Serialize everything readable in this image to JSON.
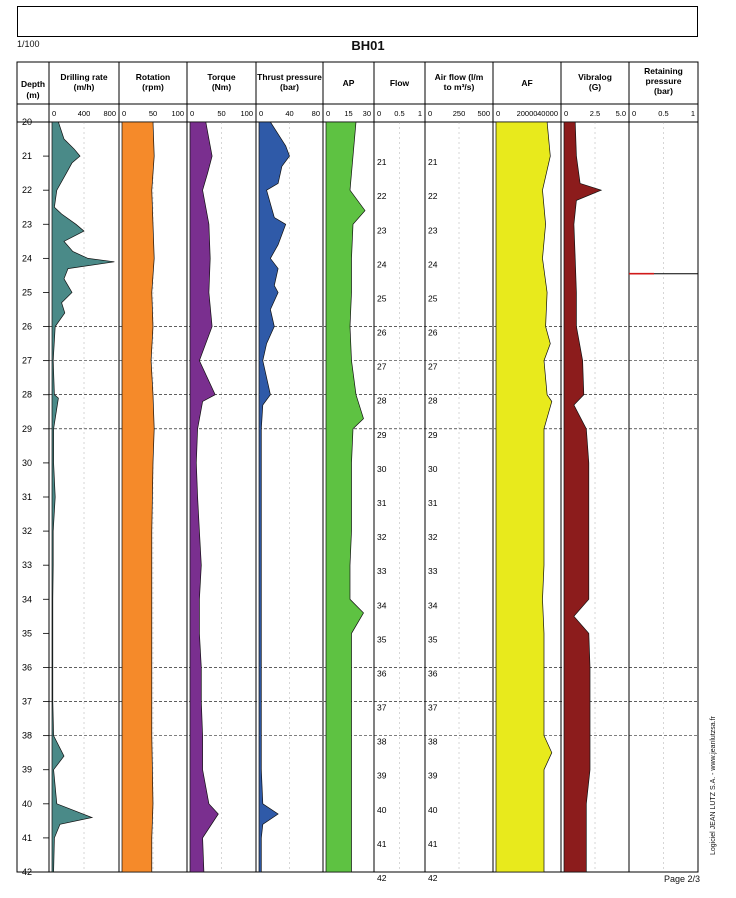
{
  "header": {
    "scale": "1/100",
    "title": "BH01",
    "page": "Page 2/3",
    "credit": "Logiciel JEAN LUTZ S.A. - www.jeanlutzsa.fr"
  },
  "chart_data": {
    "type": "well-log",
    "title": "BH01",
    "depth_axis": {
      "label_line1": "Depth",
      "label_line2": "(m)",
      "range": [
        20,
        42
      ],
      "ticks": [
        "20",
        "21",
        "22",
        "23",
        "24",
        "25",
        "26",
        "27",
        "28",
        "29",
        "30",
        "31",
        "32",
        "33",
        "34",
        "35",
        "36",
        "37",
        "38",
        "39",
        "40",
        "41",
        "42"
      ],
      "dashed_lines": [
        26,
        27,
        28,
        29,
        36,
        37,
        38
      ]
    },
    "tracks": [
      {
        "name": "Drilling rate",
        "unit": "(m/h)",
        "ticks": [
          "0",
          "400",
          "800"
        ],
        "range": [
          0,
          800
        ],
        "color": "#4a8a88",
        "series": [
          [
            20,
            80
          ],
          [
            20.5,
            150
          ],
          [
            20.8,
            280
          ],
          [
            21,
            350
          ],
          [
            21.2,
            250
          ],
          [
            21.5,
            180
          ],
          [
            22,
            60
          ],
          [
            22.5,
            30
          ],
          [
            22.7,
            120
          ],
          [
            23,
            300
          ],
          [
            23.2,
            400
          ],
          [
            23.5,
            150
          ],
          [
            23.8,
            260
          ],
          [
            24,
            450
          ],
          [
            24.1,
            780
          ],
          [
            24.3,
            200
          ],
          [
            24.6,
            150
          ],
          [
            25,
            250
          ],
          [
            25.3,
            120
          ],
          [
            25.6,
            160
          ],
          [
            26,
            40
          ],
          [
            27,
            15
          ],
          [
            28,
            30
          ],
          [
            28.1,
            80
          ],
          [
            29,
            20
          ],
          [
            30,
            20
          ],
          [
            31,
            40
          ],
          [
            32,
            15
          ],
          [
            33,
            15
          ],
          [
            34,
            10
          ],
          [
            35,
            10
          ],
          [
            36,
            10
          ],
          [
            37,
            10
          ],
          [
            38,
            20
          ],
          [
            38.6,
            150
          ],
          [
            39,
            20
          ],
          [
            40,
            60
          ],
          [
            40.4,
            500
          ],
          [
            40.6,
            100
          ],
          [
            41,
            30
          ],
          [
            42,
            20
          ]
        ]
      },
      {
        "name": "Rotation",
        "unit": "(rpm)",
        "ticks": [
          "0",
          "50",
          "100"
        ],
        "range": [
          0,
          100
        ],
        "color": "#f58a2a",
        "series": [
          [
            20,
            50
          ],
          [
            21,
            52
          ],
          [
            22,
            48
          ],
          [
            23,
            50
          ],
          [
            24,
            52
          ],
          [
            25,
            48
          ],
          [
            26,
            50
          ],
          [
            27,
            47
          ],
          [
            28,
            50
          ],
          [
            29,
            52
          ],
          [
            30,
            50
          ],
          [
            31,
            49
          ],
          [
            32,
            48
          ],
          [
            33,
            48
          ],
          [
            34,
            48
          ],
          [
            35,
            48
          ],
          [
            36,
            48
          ],
          [
            37,
            48
          ],
          [
            38,
            48
          ],
          [
            39,
            49
          ],
          [
            40,
            50
          ],
          [
            41,
            48
          ],
          [
            42,
            48
          ]
        ]
      },
      {
        "name": "Torque",
        "unit": "(Nm)",
        "ticks": [
          "0",
          "50",
          "100"
        ],
        "range": [
          0,
          100
        ],
        "color": "#7a2f8f",
        "series": [
          [
            20,
            25
          ],
          [
            20.5,
            30
          ],
          [
            21,
            35
          ],
          [
            21.5,
            28
          ],
          [
            22,
            20
          ],
          [
            23,
            30
          ],
          [
            24,
            32
          ],
          [
            25,
            30
          ],
          [
            26,
            35
          ],
          [
            27,
            15
          ],
          [
            28,
            40
          ],
          [
            28.2,
            20
          ],
          [
            29,
            12
          ],
          [
            30,
            10
          ],
          [
            31,
            12
          ],
          [
            32,
            15
          ],
          [
            33,
            18
          ],
          [
            34,
            15
          ],
          [
            35,
            15
          ],
          [
            36,
            18
          ],
          [
            37,
            18
          ],
          [
            38,
            20
          ],
          [
            39,
            20
          ],
          [
            40,
            30
          ],
          [
            40.3,
            45
          ],
          [
            41,
            20
          ],
          [
            42,
            22
          ]
        ]
      },
      {
        "name": "Thrust pressure",
        "unit": "(bar)",
        "ticks": [
          "0",
          "40",
          "80"
        ],
        "range": [
          0,
          80
        ],
        "color": "#2f5aa8",
        "series": [
          [
            20,
            15
          ],
          [
            20.7,
            35
          ],
          [
            21,
            40
          ],
          [
            21.3,
            30
          ],
          [
            21.8,
            25
          ],
          [
            22,
            10
          ],
          [
            22.8,
            20
          ],
          [
            23,
            35
          ],
          [
            23.3,
            30
          ],
          [
            23.6,
            25
          ],
          [
            24,
            15
          ],
          [
            24.3,
            25
          ],
          [
            24.8,
            20
          ],
          [
            25,
            25
          ],
          [
            25.5,
            15
          ],
          [
            26,
            20
          ],
          [
            26.5,
            10
          ],
          [
            27,
            5
          ],
          [
            28,
            15
          ],
          [
            28.3,
            5
          ],
          [
            29,
            3
          ],
          [
            30,
            3
          ],
          [
            31,
            3
          ],
          [
            32,
            3
          ],
          [
            33,
            3
          ],
          [
            34,
            3
          ],
          [
            35,
            3
          ],
          [
            36,
            3
          ],
          [
            37,
            3
          ],
          [
            38,
            3
          ],
          [
            39,
            3
          ],
          [
            40,
            5
          ],
          [
            40.3,
            25
          ],
          [
            40.6,
            5
          ],
          [
            41,
            3
          ],
          [
            42,
            3
          ]
        ]
      },
      {
        "name": "AP",
        "unit": "",
        "ticks": [
          "0",
          "15",
          "30"
        ],
        "range": [
          0,
          30
        ],
        "color": "#5ec242",
        "series": [
          [
            20,
            20
          ],
          [
            21,
            18
          ],
          [
            22,
            16
          ],
          [
            22.6,
            26
          ],
          [
            23,
            18
          ],
          [
            24,
            17
          ],
          [
            25,
            17
          ],
          [
            26,
            16
          ],
          [
            27,
            17
          ],
          [
            28,
            20
          ],
          [
            28.7,
            25
          ],
          [
            29,
            18
          ],
          [
            30,
            17
          ],
          [
            31,
            17
          ],
          [
            32,
            17
          ],
          [
            33,
            16
          ],
          [
            34,
            16
          ],
          [
            34.4,
            25
          ],
          [
            35,
            17
          ],
          [
            36,
            17
          ],
          [
            37,
            17
          ],
          [
            38,
            17
          ],
          [
            39,
            17
          ],
          [
            40,
            17
          ],
          [
            41,
            17
          ],
          [
            42,
            17
          ]
        ]
      },
      {
        "name": "Flow",
        "unit": "",
        "ticks": [
          "0",
          "0.5",
          "1"
        ],
        "range": [
          0,
          1
        ],
        "color": "#000000",
        "series": []
      },
      {
        "name": "Air flow (l/m",
        "unit": "to m³/s)",
        "ticks": [
          "0",
          "250",
          "500"
        ],
        "range": [
          0,
          500
        ],
        "color": "#000000",
        "series": []
      },
      {
        "name": "AF",
        "unit": "",
        "ticks": [
          "0",
          "20000",
          "40000"
        ],
        "range": [
          0,
          40000
        ],
        "color": "#e8ea1c",
        "series": [
          [
            20,
            33000
          ],
          [
            21,
            35000
          ],
          [
            22,
            30000
          ],
          [
            23,
            32000
          ],
          [
            24,
            30000
          ],
          [
            25,
            33000
          ],
          [
            26,
            32000
          ],
          [
            26.5,
            35000
          ],
          [
            27,
            31000
          ],
          [
            28,
            33000
          ],
          [
            28.2,
            36000
          ],
          [
            29,
            31000
          ],
          [
            30,
            31000
          ],
          [
            31,
            31000
          ],
          [
            32,
            31000
          ],
          [
            33,
            31000
          ],
          [
            34,
            30000
          ],
          [
            35,
            31000
          ],
          [
            36,
            31000
          ],
          [
            37,
            31000
          ],
          [
            38,
            31000
          ],
          [
            38.5,
            36000
          ],
          [
            39,
            31000
          ],
          [
            40,
            31000
          ],
          [
            41,
            31000
          ],
          [
            42,
            31000
          ]
        ]
      },
      {
        "name": "Vibralog",
        "unit": "(G)",
        "ticks": [
          "0",
          "2.5",
          "5.0"
        ],
        "range": [
          0,
          5
        ],
        "color": "#8c1c1c",
        "series": [
          [
            20,
            0.9
          ],
          [
            21,
            1.0
          ],
          [
            21.8,
            1.3
          ],
          [
            22,
            3.0
          ],
          [
            22.3,
            1.0
          ],
          [
            23,
            0.8
          ],
          [
            24,
            0.9
          ],
          [
            25,
            1.0
          ],
          [
            26,
            1.0
          ],
          [
            27,
            1.5
          ],
          [
            28,
            1.6
          ],
          [
            28.3,
            0.8
          ],
          [
            29,
            1.8
          ],
          [
            30,
            2.0
          ],
          [
            31,
            2.0
          ],
          [
            32,
            2.0
          ],
          [
            33,
            2.0
          ],
          [
            34,
            2.0
          ],
          [
            34.5,
            0.8
          ],
          [
            35,
            2.0
          ],
          [
            36,
            2.1
          ],
          [
            37,
            2.1
          ],
          [
            38,
            2.1
          ],
          [
            39,
            2.1
          ],
          [
            40,
            1.8
          ],
          [
            41,
            1.8
          ],
          [
            42,
            1.8
          ]
        ]
      },
      {
        "name": "Retaining",
        "unit": "pressure",
        "unit2": "(bar)",
        "ticks": [
          "0",
          "0.5",
          "1"
        ],
        "range": [
          0,
          1
        ],
        "color": "#d01a1a",
        "series": []
      }
    ],
    "in_track_depth_labels": [
      "21",
      "22",
      "23",
      "24",
      "25",
      "26",
      "27",
      "28",
      "29",
      "30",
      "31",
      "32",
      "33",
      "34",
      "35",
      "36",
      "37",
      "38",
      "39",
      "40",
      "41",
      "42"
    ]
  }
}
